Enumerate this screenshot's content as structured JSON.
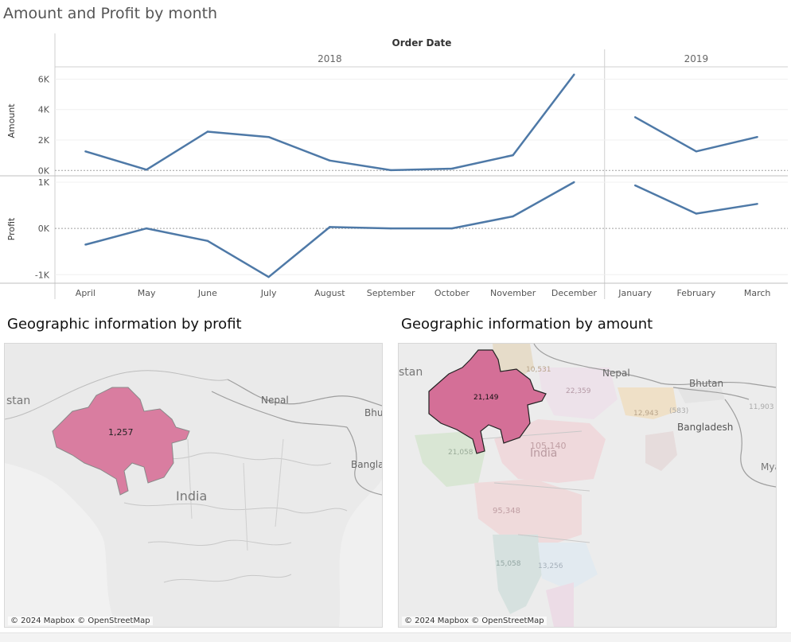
{
  "dashboard": {
    "chart_title": "Amount and Profit by month",
    "map1_title": "Geographic information by profit",
    "map2_title": "Geographic information by amount",
    "attribution": "© 2024 Mapbox © OpenStreetMap"
  },
  "colors": {
    "line": "#4e79a7",
    "highlight": "#d97da0",
    "highlight_strong": "#d46f97",
    "map_bg": "#ececec"
  },
  "chart_data": {
    "type": "line",
    "title": "Amount and Profit by month",
    "header": "Order Date",
    "years": [
      {
        "label": "2018",
        "months": [
          "April",
          "May",
          "June",
          "July",
          "August",
          "September",
          "October",
          "November",
          "December"
        ]
      },
      {
        "label": "2019",
        "months": [
          "January",
          "February",
          "March"
        ]
      }
    ],
    "categories": [
      "April",
      "May",
      "June",
      "July",
      "August",
      "September",
      "October",
      "November",
      "December",
      "January",
      "February",
      "March"
    ],
    "series": [
      {
        "name": "Amount",
        "values": [
          1250,
          50,
          2550,
          2200,
          650,
          20,
          120,
          1000,
          6300,
          3500,
          1250,
          2200
        ],
        "ylim": [
          -300,
          6600
        ],
        "ticks": [
          {
            "v": 0,
            "label": "0K"
          },
          {
            "v": 2000,
            "label": "2K"
          },
          {
            "v": 4000,
            "label": "4K"
          },
          {
            "v": 6000,
            "label": "6K"
          }
        ]
      },
      {
        "name": "Profit",
        "values": [
          -350,
          0,
          -270,
          -1050,
          30,
          0,
          0,
          260,
          1000,
          930,
          320,
          530
        ],
        "ylim": [
          -1150,
          1120
        ],
        "ticks": [
          {
            "v": -1000,
            "label": "-1K"
          },
          {
            "v": 0,
            "label": "0K"
          },
          {
            "v": 1000,
            "label": "1K"
          }
        ]
      }
    ]
  },
  "maps": {
    "profit": {
      "highlight_value": "1,257",
      "labels": {
        "india": "India",
        "nepal": "Nepal",
        "stan": "stan",
        "bhu": "Bhu",
        "bangla": "Bangla"
      }
    },
    "amount": {
      "highlight_value": "21,149",
      "labels": {
        "india": "India",
        "nepal": "Nepal",
        "stan": "stan",
        "bhutan": "Bhutan",
        "bangladesh": "Bangladesh",
        "mya": "Mya"
      },
      "state_values": [
        "22,359",
        "12,943",
        "105,140",
        "21,058",
        "95,348",
        "15,058",
        "13,256",
        "11,903",
        "(583)",
        "10,531"
      ]
    }
  }
}
